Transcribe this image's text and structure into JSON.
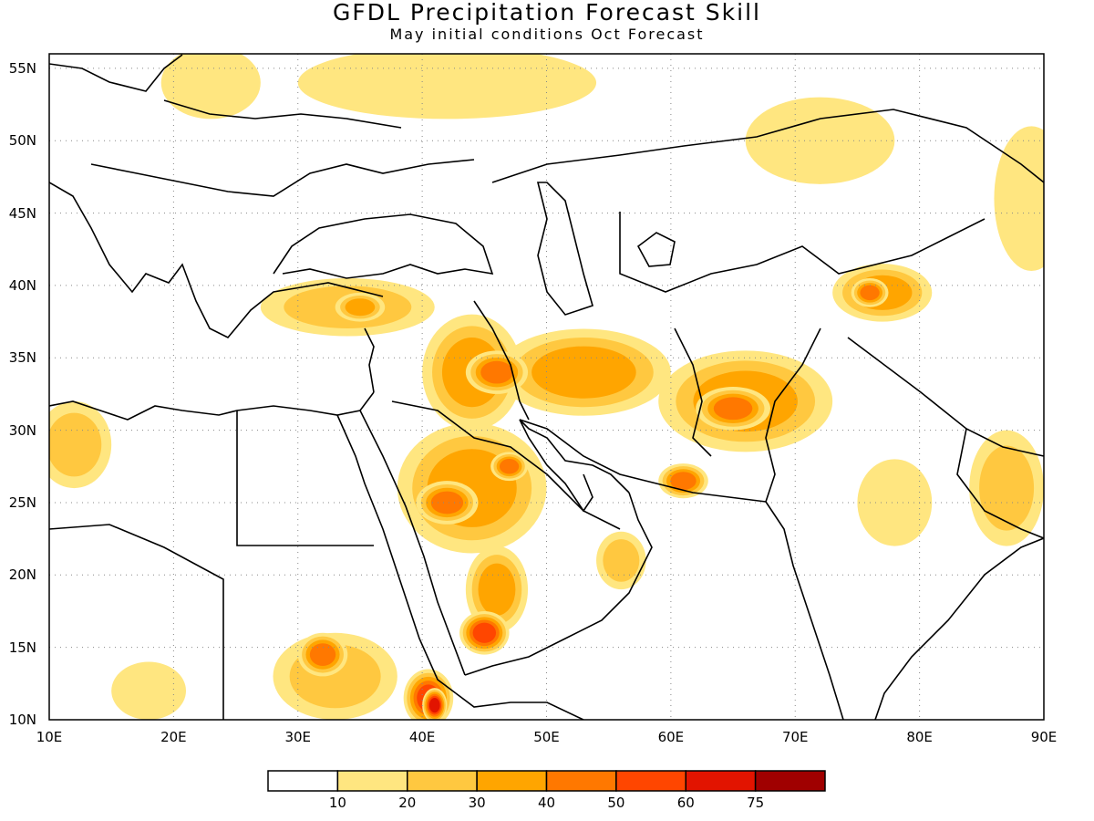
{
  "title": "GFDL Precipitation Forecast Skill",
  "subtitle": "May initial conditions   Oct Forecast",
  "axes": {
    "lat_labels": [
      "55N",
      "50N",
      "45N",
      "40N",
      "35N",
      "30N",
      "25N",
      "20N",
      "15N",
      "10N"
    ],
    "lat_values": [
      55,
      50,
      45,
      40,
      35,
      30,
      25,
      20,
      15,
      10
    ],
    "lon_labels": [
      "10E",
      "20E",
      "30E",
      "40E",
      "50E",
      "60E",
      "70E",
      "80E",
      "90E"
    ],
    "lon_values": [
      10,
      20,
      30,
      40,
      50,
      60,
      70,
      80,
      90
    ],
    "lon_range": [
      10,
      90
    ],
    "lat_range": [
      10,
      56
    ]
  },
  "colorbar": {
    "thresholds": [
      "10",
      "20",
      "30",
      "40",
      "50",
      "60",
      "75"
    ],
    "colors": [
      "#ffffff",
      "#ffe680",
      "#ffc840",
      "#ffa500",
      "#ff7800",
      "#ff4600",
      "#e21400",
      "#a00000"
    ]
  },
  "map": {
    "land_color": "#ffffff",
    "border_color": "#000000",
    "grid": "dotted",
    "skill_regions": [
      {
        "lon": 53,
        "lat": 34,
        "rx": 7,
        "ry": 3,
        "level": 3
      },
      {
        "lon": 44,
        "lat": 34,
        "rx": 4,
        "ry": 4,
        "level": 3
      },
      {
        "lon": 46,
        "lat": 34,
        "rx": 2.5,
        "ry": 1.5,
        "level": 4
      },
      {
        "lon": 44,
        "lat": 26,
        "rx": 6,
        "ry": 4.5,
        "level": 3
      },
      {
        "lon": 42,
        "lat": 25,
        "rx": 2.5,
        "ry": 1.5,
        "level": 4
      },
      {
        "lon": 47,
        "lat": 27.5,
        "rx": 1.5,
        "ry": 1,
        "level": 4
      },
      {
        "lon": 46,
        "lat": 19,
        "rx": 2.5,
        "ry": 3,
        "level": 3
      },
      {
        "lon": 45,
        "lat": 16,
        "rx": 2,
        "ry": 1.5,
        "level": 5
      },
      {
        "lon": 40.5,
        "lat": 11.5,
        "rx": 2,
        "ry": 2,
        "level": 5
      },
      {
        "lon": 41,
        "lat": 11,
        "rx": 1,
        "ry": 1.2,
        "level": 6
      },
      {
        "lon": 33,
        "lat": 13,
        "rx": 5,
        "ry": 3,
        "level": 2
      },
      {
        "lon": 32,
        "lat": 14.5,
        "rx": 2,
        "ry": 1.5,
        "level": 4
      },
      {
        "lon": 34,
        "lat": 38.5,
        "rx": 7,
        "ry": 2,
        "level": 2
      },
      {
        "lon": 35,
        "lat": 38.5,
        "rx": 2,
        "ry": 1,
        "level": 3
      },
      {
        "lon": 66,
        "lat": 32,
        "rx": 7,
        "ry": 3.5,
        "level": 3
      },
      {
        "lon": 65,
        "lat": 31.5,
        "rx": 3,
        "ry": 1.5,
        "level": 4
      },
      {
        "lon": 61,
        "lat": 26.5,
        "rx": 2,
        "ry": 1.2,
        "level": 4
      },
      {
        "lon": 77,
        "lat": 39.5,
        "rx": 4,
        "ry": 2,
        "level": 3
      },
      {
        "lon": 76,
        "lat": 39.5,
        "rx": 1.5,
        "ry": 1,
        "level": 4
      },
      {
        "lon": 12,
        "lat": 29,
        "rx": 3,
        "ry": 3,
        "level": 2
      },
      {
        "lon": 87,
        "lat": 26,
        "rx": 3,
        "ry": 4,
        "level": 2
      },
      {
        "lon": 72,
        "lat": 50,
        "rx": 6,
        "ry": 3,
        "level": 1
      },
      {
        "lon": 42,
        "lat": 54,
        "rx": 12,
        "ry": 2.5,
        "level": 1
      },
      {
        "lon": 23,
        "lat": 54,
        "rx": 4,
        "ry": 2.5,
        "level": 1
      },
      {
        "lon": 56,
        "lat": 21,
        "rx": 2,
        "ry": 2,
        "level": 2
      },
      {
        "lon": 89,
        "lat": 46,
        "rx": 3,
        "ry": 5,
        "level": 1
      },
      {
        "lon": 78,
        "lat": 25,
        "rx": 3,
        "ry": 3,
        "level": 1
      },
      {
        "lon": 18,
        "lat": 12,
        "rx": 3,
        "ry": 2,
        "level": 1
      }
    ]
  }
}
